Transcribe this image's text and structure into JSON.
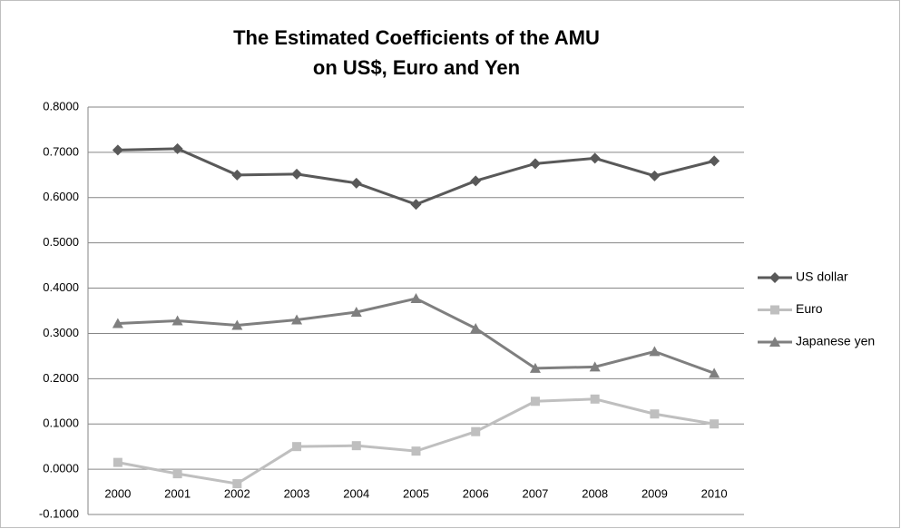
{
  "chart_data": {
    "type": "line",
    "title": [
      "The Estimated Coefficients of the AMU",
      "on US$, Euro and Yen"
    ],
    "categories": [
      "2000",
      "2001",
      "2002",
      "2003",
      "2004",
      "2005",
      "2006",
      "2007",
      "2008",
      "2009",
      "2010"
    ],
    "series": [
      {
        "name": "US dollar",
        "color": "#595959",
        "marker": "diamond",
        "values": [
          0.705,
          0.708,
          0.65,
          0.652,
          0.632,
          0.585,
          0.637,
          0.675,
          0.687,
          0.648,
          0.681
        ]
      },
      {
        "name": "Euro",
        "color": "#bfbfbf",
        "marker": "square",
        "values": [
          0.015,
          -0.01,
          -0.032,
          0.05,
          0.052,
          0.04,
          0.083,
          0.15,
          0.155,
          0.122,
          0.1
        ]
      },
      {
        "name": "Japanese yen",
        "color": "#7f7f7f",
        "marker": "triangle",
        "values": [
          0.322,
          0.328,
          0.318,
          0.33,
          0.347,
          0.377,
          0.311,
          0.223,
          0.226,
          0.26,
          0.212
        ]
      }
    ],
    "ylim": [
      -0.1,
      0.8
    ],
    "yticks": [
      {
        "value": -0.1,
        "label": "-0.1000"
      },
      {
        "value": 0,
        "label": "0.0000"
      },
      {
        "value": 0.1,
        "label": "0.1000"
      },
      {
        "value": 0.2,
        "label": "0.2000"
      },
      {
        "value": 0.3,
        "label": "0.3000"
      },
      {
        "value": 0.4,
        "label": "0.4000"
      },
      {
        "value": 0.5,
        "label": "0.5000"
      },
      {
        "value": 0.6,
        "label": "0.6000"
      },
      {
        "value": 0.7,
        "label": "0.7000"
      },
      {
        "value": 0.8,
        "label": "0.8000"
      }
    ],
    "grid": true,
    "legend": "right"
  }
}
